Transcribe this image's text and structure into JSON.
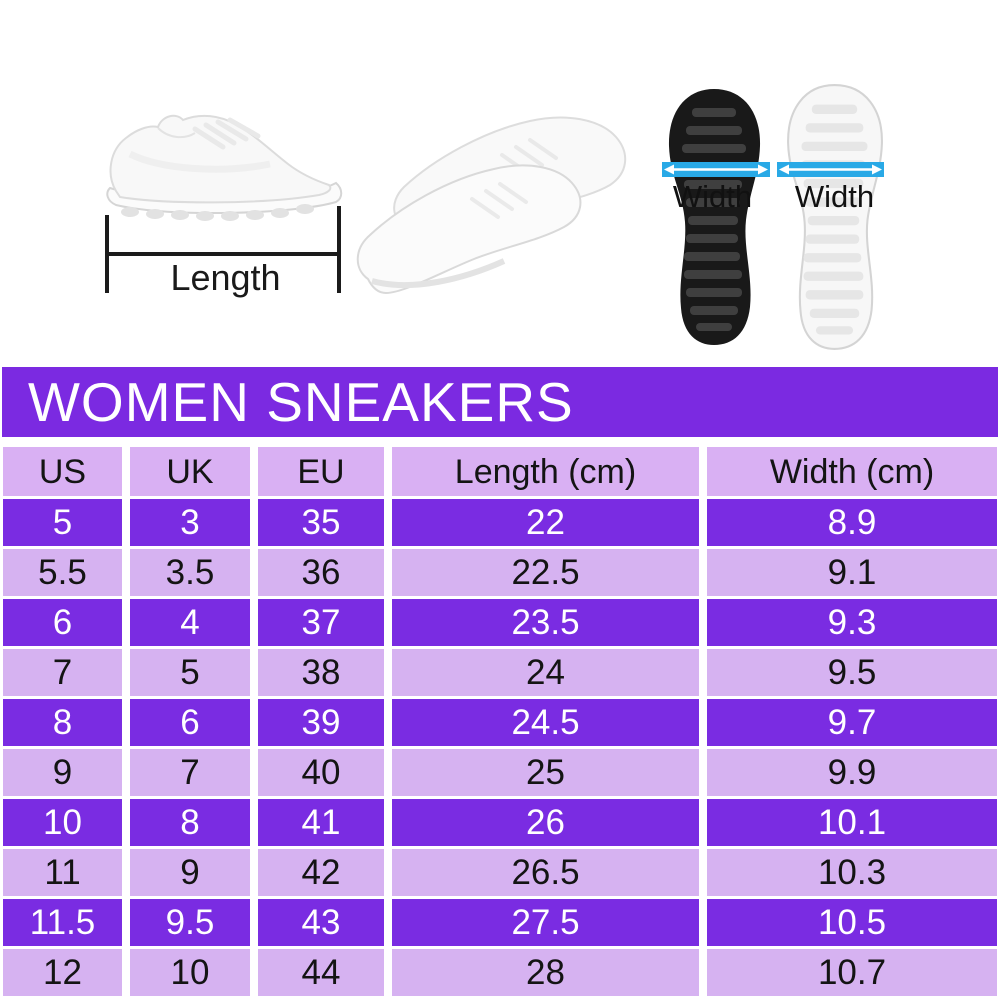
{
  "banner": {
    "title": "WOMEN SNEAKERS"
  },
  "figures": {
    "length_label": "Length",
    "sole_black": {
      "width_label": "Width"
    },
    "sole_white": {
      "width_label": "Width"
    }
  },
  "table": {
    "headers": [
      "US",
      "UK",
      "EU",
      "Length (cm)",
      "Width (cm)"
    ],
    "rows": [
      [
        "5",
        "3",
        "35",
        "22",
        "8.9"
      ],
      [
        "5.5",
        "3.5",
        "36",
        "22.5",
        "9.1"
      ],
      [
        "6",
        "4",
        "37",
        "23.5",
        "9.3"
      ],
      [
        "7",
        "5",
        "38",
        "24",
        "9.5"
      ],
      [
        "8",
        "6",
        "39",
        "24.5",
        "9.7"
      ],
      [
        "9",
        "7",
        "40",
        "25",
        "9.9"
      ],
      [
        "10",
        "8",
        "41",
        "26",
        "10.1"
      ],
      [
        "11",
        "9",
        "42",
        "26.5",
        "10.3"
      ],
      [
        "11.5",
        "9.5",
        "43",
        "27.5",
        "10.5"
      ],
      [
        "12",
        "10",
        "44",
        "28",
        "10.7"
      ]
    ]
  },
  "colors": {
    "banner_purple": "#7b2ae1",
    "row_dark": "#7a2ce2",
    "row_light": "#d6b2f1",
    "header_bg": "#d9b0f3",
    "arrow_cyan": "#29a9e6",
    "sole_black": "#191919",
    "sole_white": "#f7f7f7"
  },
  "chart_data": {
    "type": "table",
    "title": "WOMEN SNEAKERS",
    "columns": [
      "US",
      "UK",
      "EU",
      "Length (cm)",
      "Width (cm)"
    ],
    "rows": [
      [
        "5",
        "3",
        "35",
        "22",
        "8.9"
      ],
      [
        "5.5",
        "3.5",
        "36",
        "22.5",
        "9.1"
      ],
      [
        "6",
        "4",
        "37",
        "23.5",
        "9.3"
      ],
      [
        "7",
        "5",
        "38",
        "24",
        "9.5"
      ],
      [
        "8",
        "6",
        "39",
        "24.5",
        "9.7"
      ],
      [
        "9",
        "7",
        "40",
        "25",
        "9.9"
      ],
      [
        "10",
        "8",
        "41",
        "26",
        "10.1"
      ],
      [
        "11",
        "9",
        "42",
        "26.5",
        "10.3"
      ],
      [
        "11.5",
        "9.5",
        "43",
        "27.5",
        "10.5"
      ],
      [
        "12",
        "10",
        "44",
        "28",
        "10.7"
      ]
    ],
    "annotations": [
      "Length",
      "Width",
      "Width"
    ],
    "legend_position": "none",
    "grid": false
  }
}
